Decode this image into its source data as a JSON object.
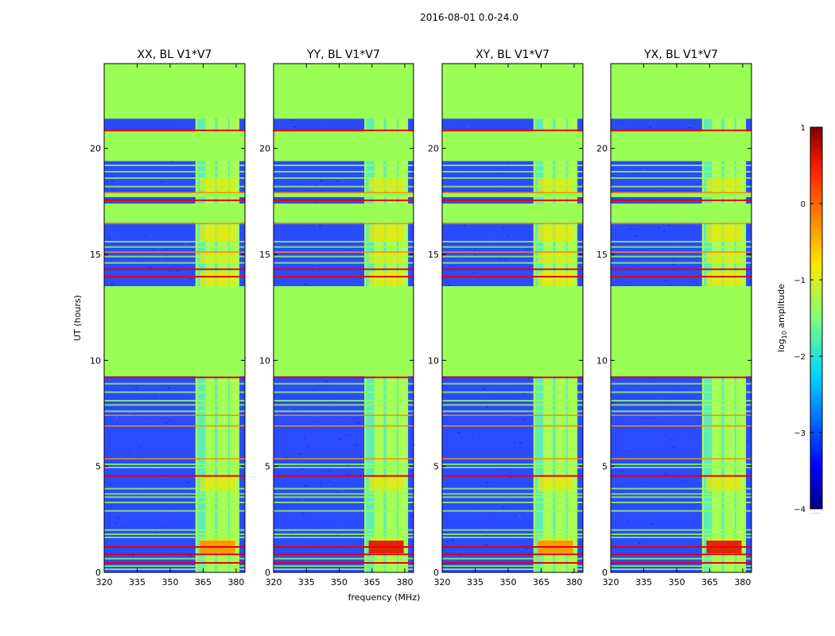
{
  "figure_title": "2016-08-01 0.0-24.0",
  "colors": {
    "nodata": "#99ff55",
    "background": "#2a4bff",
    "cyan": "#22e0ff",
    "yellow": "#f2e600",
    "orange": "#ff8a00",
    "red": "#e80000"
  },
  "chart_data": [
    {
      "type": "heatmap",
      "panel": "XX",
      "title": "XX, BL V1*V7",
      "xlabel": "",
      "ylabel": "UT (hours)",
      "xlim": [
        320,
        384
      ],
      "ylim": [
        0,
        24
      ],
      "xticks": [
        "320",
        "335",
        "350",
        "365",
        "380"
      ],
      "yticks": [
        "0",
        "5",
        "10",
        "15",
        "20"
      ],
      "rfi_band_mhz": [
        361.5,
        381.5
      ],
      "strong_rfi_hours": [
        0.9,
        1.5
      ],
      "strong_rfi_level": "orange"
    },
    {
      "type": "heatmap",
      "panel": "YY",
      "title": "YY, BL V1*V7",
      "xlabel": "frequency (MHz)",
      "ylabel": "",
      "xlim": [
        320,
        384
      ],
      "ylim": [
        0,
        24
      ],
      "xticks": [
        "320",
        "335",
        "350",
        "365",
        "380"
      ],
      "yticks": [
        "0",
        "5",
        "10",
        "15",
        "20"
      ],
      "rfi_band_mhz": [
        361.5,
        381.5
      ],
      "strong_rfi_hours": [
        0.9,
        1.5
      ],
      "strong_rfi_level": "red"
    },
    {
      "type": "heatmap",
      "panel": "XY",
      "title": "XY, BL V1*V7",
      "xlabel": "",
      "ylabel": "",
      "xlim": [
        320,
        384
      ],
      "ylim": [
        0,
        24
      ],
      "xticks": [
        "320",
        "335",
        "350",
        "365",
        "380"
      ],
      "yticks": [
        "0",
        "5",
        "10",
        "15",
        "20"
      ],
      "rfi_band_mhz": [
        361.5,
        381.5
      ],
      "strong_rfi_hours": [
        0.9,
        1.5
      ],
      "strong_rfi_level": "orange"
    },
    {
      "type": "heatmap",
      "panel": "YX",
      "title": "YX, BL V1*V7",
      "xlabel": "",
      "ylabel": "",
      "xlim": [
        320,
        384
      ],
      "ylim": [
        0,
        24
      ],
      "xticks": [
        "320",
        "335",
        "350",
        "365",
        "380"
      ],
      "yticks": [
        "0",
        "5",
        "10",
        "15",
        "20"
      ],
      "rfi_band_mhz": [
        361.5,
        381.5
      ],
      "strong_rfi_hours": [
        0.9,
        1.5
      ],
      "strong_rfi_level": "red"
    }
  ],
  "shared": {
    "nodata_ranges_hours": [
      [
        21.4,
        24.0
      ],
      [
        9.25,
        13.5
      ],
      [
        19.4,
        20.8
      ],
      [
        16.5,
        17.4
      ],
      [
        17.7,
        17.9
      ]
    ],
    "red_lines_hours": [
      20.85,
      17.55,
      14.3,
      13.95,
      9.2,
      4.55,
      1.2,
      0.85,
      0.45
    ],
    "orange_lines_hours": [
      17.9,
      16.45,
      15.1,
      5.35,
      7.4,
      6.9
    ],
    "gap_lines_hours": [
      19.2,
      18.9,
      18.6,
      18.2,
      15.6,
      15.35,
      14.9,
      14.6,
      8.9,
      8.5,
      8.1,
      7.9,
      7.6,
      5.1,
      4.95,
      3.95,
      3.7,
      3.55,
      3.3,
      2.9,
      2.0,
      1.8,
      1.65,
      0.65,
      0.3,
      0.15
    ],
    "rfi_columns_mhz": [
      361.5,
      366.0,
      369.5,
      371.5,
      375.5,
      377.0,
      381.5
    ]
  },
  "colorbar": {
    "label_prefix": "log",
    "label_sub": "10",
    "label_suffix": " amplitude",
    "min": -4,
    "max": 1,
    "ticks": [
      "1",
      "0",
      "−1",
      "−2",
      "−3",
      "−4"
    ],
    "footer": "······"
  }
}
